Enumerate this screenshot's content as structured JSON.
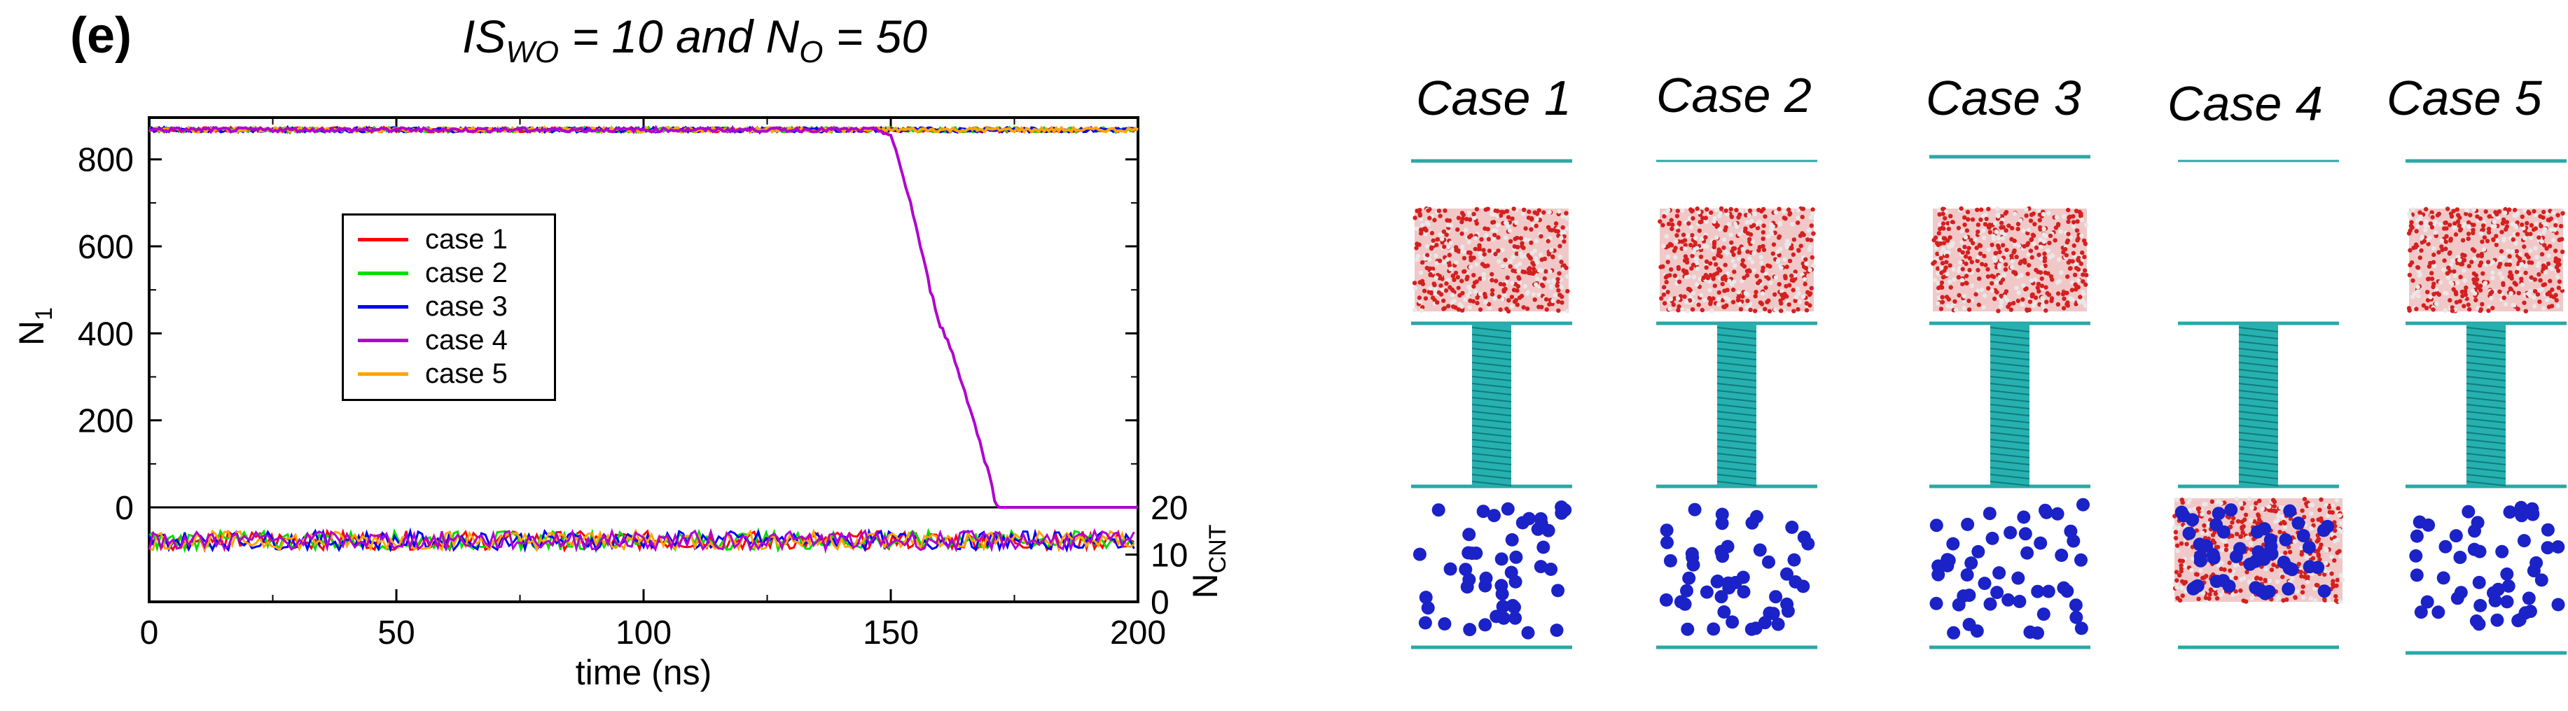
{
  "panel_label": "(e)",
  "title": {
    "prefix": "IS",
    "prefix_sub": "WO",
    "middle": " = 10 and N",
    "middle_sub": "O",
    "suffix": " = 50"
  },
  "chart_data": {
    "type": "line",
    "title": "IS_WO = 10 and N_O = 50",
    "xlabel": "time (ns)",
    "xlim": [
      0,
      200
    ],
    "xticks": [
      0,
      50,
      100,
      150,
      200
    ],
    "top_axis": {
      "ylabel": "N1",
      "ylabel_main": "N",
      "ylabel_sub": "1",
      "ylim": [
        0,
        880
      ],
      "yticks": [
        0,
        200,
        400,
        600,
        800
      ]
    },
    "bottom_axis": {
      "ylabel": "NCNT",
      "ylabel_main": "N",
      "ylabel_sub": "CNT",
      "ylim": [
        0,
        20
      ],
      "yticks": [
        0,
        10,
        20
      ],
      "position": "right"
    },
    "legend_position": "left-center",
    "series": [
      {
        "name": "case 1",
        "color": "#ff0000",
        "top": {
          "x": [
            0,
            200
          ],
          "y": [
            868,
            868
          ]
        },
        "bottom": {
          "x": [
            0,
            200
          ],
          "y": [
            13,
            13
          ]
        }
      },
      {
        "name": "case 2",
        "color": "#00dd00",
        "top": {
          "x": [
            0,
            200
          ],
          "y": [
            868,
            868
          ]
        },
        "bottom": {
          "x": [
            0,
            200
          ],
          "y": [
            13,
            13
          ]
        }
      },
      {
        "name": "case 3",
        "color": "#0000ff",
        "top": {
          "x": [
            0,
            200
          ],
          "y": [
            868,
            868
          ]
        },
        "bottom": {
          "x": [
            0,
            200
          ],
          "y": [
            13,
            13
          ]
        }
      },
      {
        "name": "case 4",
        "color": "#b000d0",
        "top": {
          "x": [
            0,
            145,
            148,
            150,
            152,
            154,
            156,
            158,
            160,
            162,
            164,
            166,
            168,
            170,
            171,
            172,
            200
          ],
          "y": [
            868,
            868,
            866,
            855,
            780,
            700,
            600,
            500,
            420,
            370,
            300,
            230,
            150,
            70,
            20,
            0,
            0
          ]
        },
        "bottom": {
          "x": [
            0,
            200
          ],
          "y": [
            13,
            13
          ]
        }
      },
      {
        "name": "case 5",
        "color": "#ffa500",
        "top": {
          "x": [
            0,
            200
          ],
          "y": [
            868,
            868
          ]
        },
        "bottom": {
          "x": [
            0,
            200
          ],
          "y": [
            13,
            13
          ]
        }
      }
    ]
  },
  "cases": [
    {
      "label": "Case 1",
      "water_top": true,
      "water_bottom": false
    },
    {
      "label": "Case 2",
      "water_top": true,
      "water_bottom": false
    },
    {
      "label": "Case 3",
      "water_top": true,
      "water_bottom": false
    },
    {
      "label": "Case 4",
      "water_top": false,
      "water_bottom": true
    },
    {
      "label": "Case 5",
      "water_top": true,
      "water_bottom": false
    }
  ],
  "colors": {
    "graphene": "#2aa7a7",
    "cnt": "#27b0b0",
    "water_red": "#d42020",
    "water_white": "#e8e8e8",
    "ion_blue": "#1a22c8"
  }
}
